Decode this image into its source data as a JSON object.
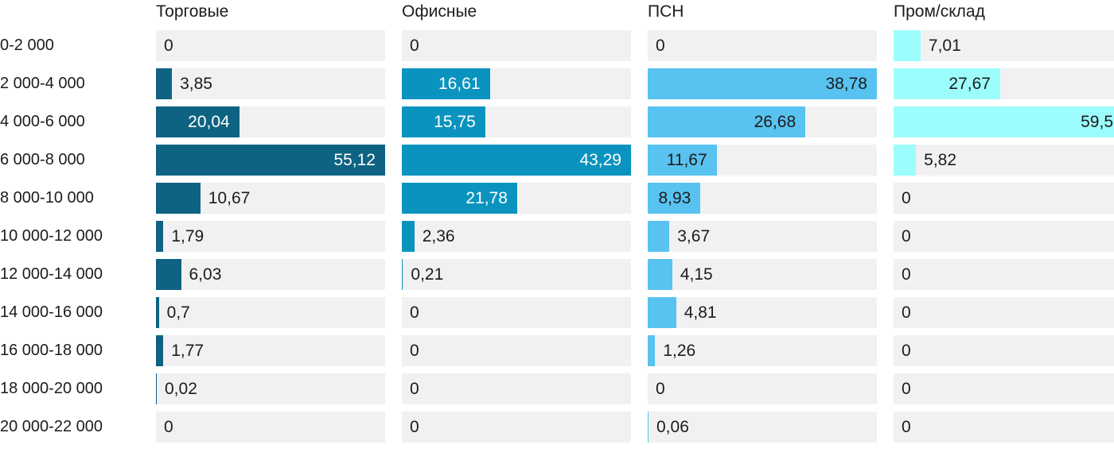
{
  "chart_data": {
    "type": "bar",
    "orientation": "horizontal",
    "scaling": "per-series-max",
    "title": "",
    "xlabel": "",
    "ylabel": "",
    "categories": [
      "0-2 000",
      "2 000-4 000",
      "4 000-6 000",
      "6 000-8 000",
      "8 000-10 000",
      "10 000-12 000",
      "12 000-14 000",
      "14 000-16 000",
      "16 000-18 000",
      "18 000-20 000",
      "20 000-22 000"
    ],
    "series": [
      {
        "name": "Торговые",
        "color": "#0e6383",
        "label_color_inside": "#ffffff",
        "values": [
          0,
          3.85,
          20.04,
          55.12,
          10.67,
          1.79,
          6.03,
          0.7,
          1.77,
          0.02,
          0
        ],
        "display_values": [
          "0",
          "3,85",
          "20,04",
          "55,12",
          "10,67",
          "1,79",
          "6,03",
          "0,7",
          "1,77",
          "0,02",
          "0"
        ]
      },
      {
        "name": "Офисные",
        "color": "#0a93bf",
        "label_color_inside": "#ffffff",
        "values": [
          0,
          16.61,
          15.75,
          43.29,
          21.78,
          2.36,
          0.21,
          0,
          0,
          0,
          0
        ],
        "display_values": [
          "0",
          "16,61",
          "15,75",
          "43,29",
          "21,78",
          "2,36",
          "0,21",
          "0",
          "0",
          "0",
          "0"
        ]
      },
      {
        "name": "ПСН",
        "color": "#58c2f0",
        "label_color_inside": "#1c1c1c",
        "values": [
          0,
          38.78,
          26.68,
          11.67,
          8.93,
          3.67,
          4.15,
          4.81,
          1.26,
          0,
          0.06
        ],
        "display_values": [
          "0",
          "38,78",
          "26,68",
          "11,67",
          "8,93",
          "3,67",
          "4,15",
          "4,81",
          "1,26",
          "0",
          "0,06"
        ]
      },
      {
        "name": "Пром/склад",
        "color": "#9cfdfc",
        "label_color_inside": "#1c1c1c",
        "values": [
          7.01,
          27.67,
          59.5,
          5.82,
          0,
          0,
          0,
          0,
          0,
          0,
          0
        ],
        "display_values": [
          "7,01",
          "27,67",
          "59,5",
          "5,82",
          "0",
          "0",
          "0",
          "0",
          "0",
          "0",
          "0"
        ]
      }
    ],
    "track_color": "#f1f1f1",
    "text_color": "#1c1c1c",
    "legend_position": "top-as-column-headers",
    "grid": false
  }
}
